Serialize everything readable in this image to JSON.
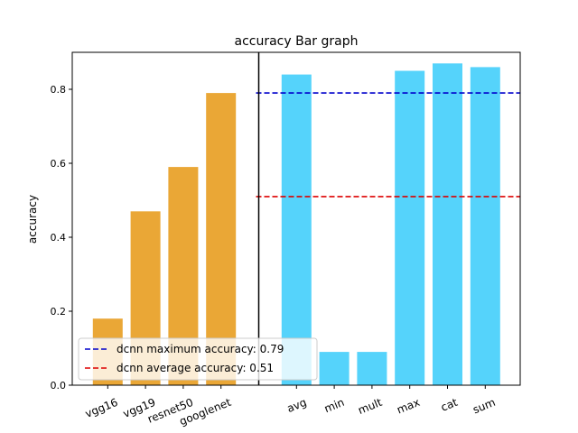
{
  "chart_data": {
    "type": "bar",
    "title": "accuracy Bar graph",
    "xlabel": "",
    "ylabel": "accuracy",
    "ylim": [
      0,
      0.9
    ],
    "yticks": [
      0.0,
      0.2,
      0.4,
      0.6,
      0.8
    ],
    "ytick_labels": [
      "0.0",
      "0.2",
      "0.4",
      "0.6",
      "0.8"
    ],
    "categories": [
      "vgg16",
      "vgg19",
      "resnet50",
      "googlenet",
      "avg",
      "min",
      "mult",
      "max",
      "cat",
      "sum"
    ],
    "series": [
      {
        "values": [
          0.18,
          0.47,
          0.59,
          0.79,
          null,
          null,
          null,
          null,
          null,
          null
        ],
        "color": "#eaa736"
      },
      {
        "values": [
          null,
          null,
          null,
          null,
          0.84,
          0.09,
          0.09,
          0.85,
          0.87,
          0.86
        ],
        "color": "#55d3fb"
      }
    ],
    "reference_lines": [
      {
        "label": "dcnn maximum accuracy: 0.79",
        "value": 0.79,
        "color": "#0000cc",
        "style": "dashed"
      },
      {
        "label": "dcnn average accuracy: 0.51",
        "value": 0.51,
        "color": "#dd0000",
        "style": "dashed"
      }
    ],
    "divider_after_category": "googlenet",
    "legend_position": "lower-left",
    "grid": false
  }
}
